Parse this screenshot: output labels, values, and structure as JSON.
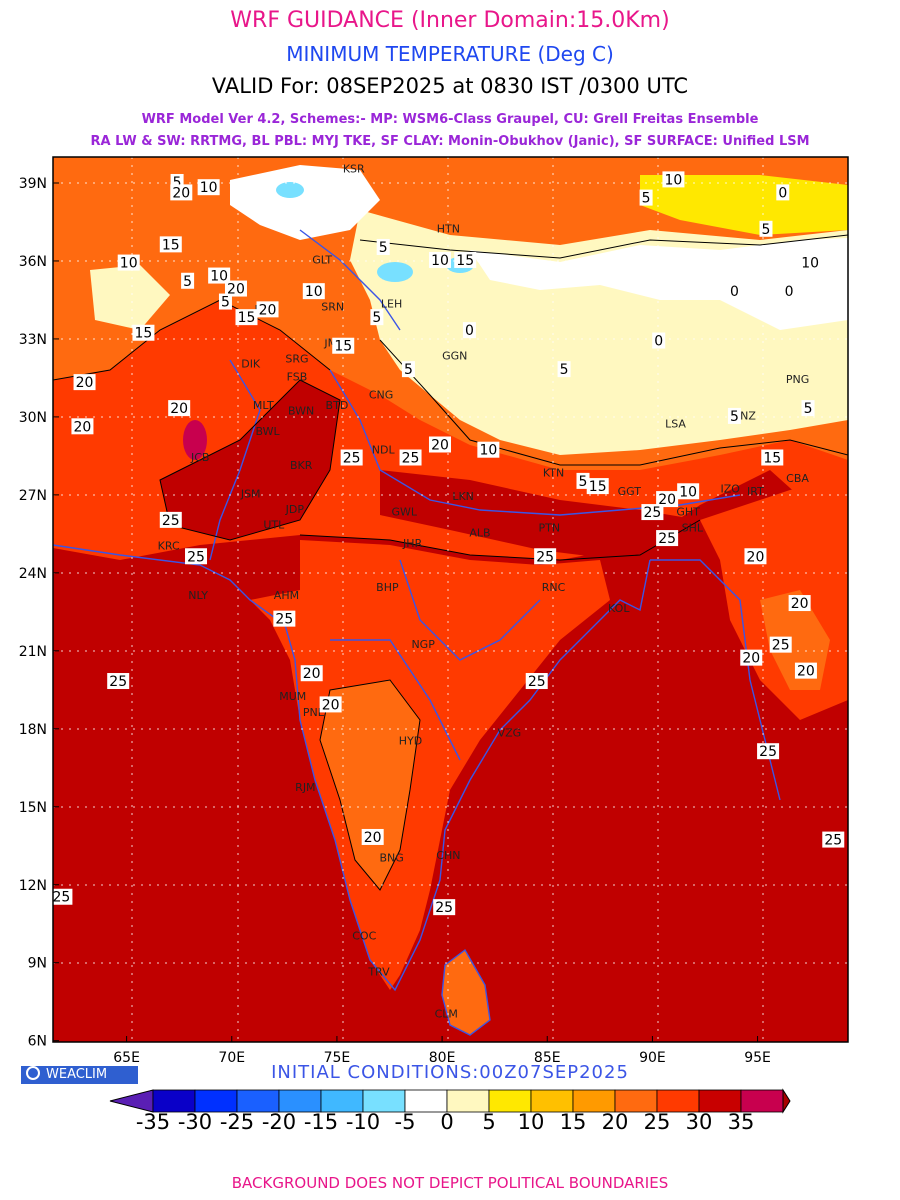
{
  "titles": {
    "line1": "WRF GUIDANCE (Inner Domain:15.0Km)",
    "line2": "MINIMUM TEMPERATURE (Deg C)",
    "line3": "VALID For: 08SEP2025 at 0830 IST /0300 UTC",
    "line4": "WRF Model Ver 4.2, Schemes:- MP: WSM6-Class Graupel, CU: Grell Freitas Ensemble",
    "line5": "RA LW & SW: RRTMG, BL PBL: MYJ TKE, SF CLAY: Monin-Obukhov (Janic), SF SURFACE: Unified LSM"
  },
  "axes": {
    "lat_labels": [
      "39N",
      "36N",
      "33N",
      "30N",
      "27N",
      "24N",
      "21N",
      "18N",
      "15N",
      "12N",
      "9N",
      "6N"
    ],
    "lon_labels": [
      "65E",
      "70E",
      "75E",
      "80E",
      "85E",
      "90E",
      "95E"
    ]
  },
  "cities": [
    {
      "code": "KSR",
      "lon": 75.8,
      "lat": 39.4
    },
    {
      "code": "HTN",
      "lon": 80.3,
      "lat": 37.1
    },
    {
      "code": "GLT",
      "lon": 74.3,
      "lat": 35.9
    },
    {
      "code": "LEH",
      "lon": 77.6,
      "lat": 34.2
    },
    {
      "code": "PSH",
      "lon": 71.6,
      "lat": 34.0
    },
    {
      "code": "SRN",
      "lon": 74.8,
      "lat": 34.1
    },
    {
      "code": "JMU",
      "lon": 74.9,
      "lat": 32.7
    },
    {
      "code": "GGN",
      "lon": 80.6,
      "lat": 32.2
    },
    {
      "code": "DIK",
      "lon": 70.9,
      "lat": 31.9
    },
    {
      "code": "SRG",
      "lon": 73.1,
      "lat": 32.1
    },
    {
      "code": "FSB",
      "lon": 73.1,
      "lat": 31.4
    },
    {
      "code": "MLT",
      "lon": 71.5,
      "lat": 30.3
    },
    {
      "code": "BWN",
      "lon": 73.3,
      "lat": 30.1
    },
    {
      "code": "BTD",
      "lon": 75.0,
      "lat": 30.3
    },
    {
      "code": "BWL",
      "lon": 71.7,
      "lat": 29.3
    },
    {
      "code": "CNG",
      "lon": 77.1,
      "lat": 30.7
    },
    {
      "code": "NDL",
      "lon": 77.2,
      "lat": 28.6
    },
    {
      "code": "JCB",
      "lon": 68.5,
      "lat": 28.3
    },
    {
      "code": "BKR",
      "lon": 73.3,
      "lat": 28.0
    },
    {
      "code": "LSA",
      "lon": 91.1,
      "lat": 29.6
    },
    {
      "code": "LNZ",
      "lon": 94.4,
      "lat": 29.9
    },
    {
      "code": "PNG",
      "lon": 96.9,
      "lat": 31.3
    },
    {
      "code": "CBA",
      "lon": 96.9,
      "lat": 27.5
    },
    {
      "code": "KTN",
      "lon": 85.3,
      "lat": 27.7
    },
    {
      "code": "GGT",
      "lon": 88.9,
      "lat": 27.0
    },
    {
      "code": "IZO",
      "lon": 93.7,
      "lat": 27.1
    },
    {
      "code": "IRT",
      "lon": 94.9,
      "lat": 27.0
    },
    {
      "code": "GHT",
      "lon": 91.7,
      "lat": 26.2
    },
    {
      "code": "SHL",
      "lon": 91.9,
      "lat": 25.6
    },
    {
      "code": "JSM",
      "lon": 70.9,
      "lat": 26.9
    },
    {
      "code": "JDP",
      "lon": 73.0,
      "lat": 26.3
    },
    {
      "code": "LKN",
      "lon": 81.0,
      "lat": 26.8
    },
    {
      "code": "GWL",
      "lon": 78.2,
      "lat": 26.2
    },
    {
      "code": "UTL",
      "lon": 72.0,
      "lat": 25.7
    },
    {
      "code": "ALB",
      "lon": 81.8,
      "lat": 25.4
    },
    {
      "code": "PTN",
      "lon": 85.1,
      "lat": 25.6
    },
    {
      "code": "JHR",
      "lon": 78.6,
      "lat": 25.0
    },
    {
      "code": "KRC",
      "lon": 67.0,
      "lat": 24.9
    },
    {
      "code": "NLY",
      "lon": 68.4,
      "lat": 23.0
    },
    {
      "code": "AHM",
      "lon": 72.6,
      "lat": 23.0
    },
    {
      "code": "BHP",
      "lon": 77.4,
      "lat": 23.3
    },
    {
      "code": "RNC",
      "lon": 85.3,
      "lat": 23.3
    },
    {
      "code": "KOL",
      "lon": 88.4,
      "lat": 22.5
    },
    {
      "code": "NGP",
      "lon": 79.1,
      "lat": 21.1
    },
    {
      "code": "MUM",
      "lon": 72.9,
      "lat": 19.1
    },
    {
      "code": "PNE",
      "lon": 73.9,
      "lat": 18.5
    },
    {
      "code": "HYD",
      "lon": 78.5,
      "lat": 17.4
    },
    {
      "code": "VZG",
      "lon": 83.2,
      "lat": 17.7
    },
    {
      "code": "RJM",
      "lon": 73.5,
      "lat": 15.6
    },
    {
      "code": "CHN",
      "lon": 80.3,
      "lat": 13.0
    },
    {
      "code": "BNG",
      "lon": 77.6,
      "lat": 12.9
    },
    {
      "code": "COC",
      "lon": 76.3,
      "lat": 9.9
    },
    {
      "code": "TRV",
      "lon": 77.0,
      "lat": 8.5
    },
    {
      "code": "CLM",
      "lon": 80.2,
      "lat": 6.9
    }
  ],
  "contour_labels": [
    {
      "t": "5",
      "lon": 67.4,
      "lat": 39.0
    },
    {
      "t": "20",
      "lon": 67.6,
      "lat": 38.6
    },
    {
      "t": "10",
      "lon": 68.9,
      "lat": 38.8
    },
    {
      "t": "15",
      "lon": 67.1,
      "lat": 36.6
    },
    {
      "t": "10",
      "lon": 65.1,
      "lat": 35.9
    },
    {
      "t": "5",
      "lon": 67.9,
      "lat": 35.2
    },
    {
      "t": "10",
      "lon": 69.4,
      "lat": 35.4
    },
    {
      "t": "20",
      "lon": 70.2,
      "lat": 34.9
    },
    {
      "t": "5",
      "lon": 69.7,
      "lat": 34.4
    },
    {
      "t": "15",
      "lon": 70.7,
      "lat": 33.8
    },
    {
      "t": "15",
      "lon": 65.8,
      "lat": 33.2
    },
    {
      "t": "20",
      "lon": 71.7,
      "lat": 34.1
    },
    {
      "t": "10",
      "lon": 73.9,
      "lat": 34.8
    },
    {
      "t": "15",
      "lon": 75.3,
      "lat": 32.7
    },
    {
      "t": "5",
      "lon": 76.9,
      "lat": 33.8
    },
    {
      "t": "20",
      "lon": 63.0,
      "lat": 31.3
    },
    {
      "t": "20",
      "lon": 67.5,
      "lat": 30.3
    },
    {
      "t": "20",
      "lon": 62.9,
      "lat": 29.6
    },
    {
      "t": "5",
      "lon": 77.2,
      "lat": 36.5
    },
    {
      "t": "10",
      "lon": 79.9,
      "lat": 36.0
    },
    {
      "t": "15",
      "lon": 81.1,
      "lat": 36.0
    },
    {
      "t": "10",
      "lon": 91.0,
      "lat": 39.1
    },
    {
      "t": "5",
      "lon": 89.7,
      "lat": 38.4
    },
    {
      "t": "0",
      "lon": 96.2,
      "lat": 38.6
    },
    {
      "t": "5",
      "lon": 95.4,
      "lat": 37.2
    },
    {
      "t": "10",
      "lon": 97.5,
      "lat": 35.9
    },
    {
      "t": "0",
      "lon": 96.5,
      "lat": 34.8
    },
    {
      "t": "0",
      "lon": 93.9,
      "lat": 34.8
    },
    {
      "t": "0",
      "lon": 81.3,
      "lat": 33.3
    },
    {
      "t": "0",
      "lon": 90.3,
      "lat": 32.9
    },
    {
      "t": "5",
      "lon": 85.8,
      "lat": 31.8
    },
    {
      "t": "5",
      "lon": 78.4,
      "lat": 31.8
    },
    {
      "t": "5",
      "lon": 93.9,
      "lat": 30.0
    },
    {
      "t": "5",
      "lon": 97.4,
      "lat": 30.3
    },
    {
      "t": "20",
      "lon": 79.9,
      "lat": 28.9
    },
    {
      "t": "10",
      "lon": 82.2,
      "lat": 28.7
    },
    {
      "t": "25",
      "lon": 75.7,
      "lat": 28.4
    },
    {
      "t": "25",
      "lon": 78.5,
      "lat": 28.4
    },
    {
      "t": "5",
      "lon": 86.7,
      "lat": 27.5
    },
    {
      "t": "15",
      "lon": 87.4,
      "lat": 27.3
    },
    {
      "t": "20",
      "lon": 90.7,
      "lat": 26.8
    },
    {
      "t": "10",
      "lon": 91.7,
      "lat": 27.1
    },
    {
      "t": "15",
      "lon": 95.7,
      "lat": 28.4
    },
    {
      "t": "25",
      "lon": 90.0,
      "lat": 26.3
    },
    {
      "t": "25",
      "lon": 90.7,
      "lat": 25.3
    },
    {
      "t": "20",
      "lon": 94.9,
      "lat": 24.6
    },
    {
      "t": "25",
      "lon": 67.1,
      "lat": 26.0
    },
    {
      "t": "25",
      "lon": 68.3,
      "lat": 24.6
    },
    {
      "t": "25",
      "lon": 84.9,
      "lat": 24.6
    },
    {
      "t": "25",
      "lon": 72.5,
      "lat": 22.2
    },
    {
      "t": "20",
      "lon": 97.0,
      "lat": 22.8
    },
    {
      "t": "25",
      "lon": 96.1,
      "lat": 21.2
    },
    {
      "t": "20",
      "lon": 94.7,
      "lat": 20.7
    },
    {
      "t": "20",
      "lon": 97.3,
      "lat": 20.2
    },
    {
      "t": "20",
      "lon": 73.8,
      "lat": 20.1
    },
    {
      "t": "20",
      "lon": 74.7,
      "lat": 18.9
    },
    {
      "t": "25",
      "lon": 84.5,
      "lat": 19.8
    },
    {
      "t": "25",
      "lon": 64.6,
      "lat": 19.8
    },
    {
      "t": "25",
      "lon": 95.5,
      "lat": 17.1
    },
    {
      "t": "20",
      "lon": 76.7,
      "lat": 13.8
    },
    {
      "t": "25",
      "lon": 98.6,
      "lat": 13.7
    },
    {
      "t": "25",
      "lon": 61.9,
      "lat": 11.5
    },
    {
      "t": "25",
      "lon": 80.1,
      "lat": 11.1
    }
  ],
  "colorbar": {
    "labels": [
      "-35",
      "-30",
      "-25",
      "-20",
      "-15",
      "-10",
      "-5",
      "0",
      "5",
      "10",
      "15",
      "20",
      "25",
      "30",
      "35"
    ],
    "low_color": "#5a1fb4",
    "high_color": "#a80000",
    "colors": [
      "#0a00c8",
      "#0030ff",
      "#1a60ff",
      "#2a90ff",
      "#40b8ff",
      "#78e0ff",
      "#ffffff",
      "#fff8c0",
      "#ffe800",
      "#ffc000",
      "#ff9a00",
      "#ff6a10",
      "#ff3a00",
      "#c80000",
      "#c8004e"
    ]
  },
  "branding": {
    "logo_text": "WEACLIM",
    "initial_conditions": "INITIAL CONDITIONS:00Z07SEP2025",
    "footer": "BACKGROUND DOES NOT DEPICT POLITICAL BOUNDARIES"
  }
}
